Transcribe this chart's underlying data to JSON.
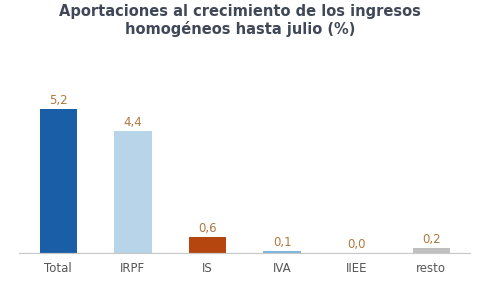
{
  "title": "Aportaciones al crecimiento de los ingresos\nhomogéneos hasta julio (%)",
  "categories": [
    "Total",
    "IRPF",
    "IS",
    "IVA",
    "IIEE",
    "resto"
  ],
  "values": [
    5.2,
    4.4,
    0.6,
    0.1,
    0.0,
    0.2
  ],
  "bar_colors": [
    "#1a5ea8",
    "#b8d4e8",
    "#b5460f",
    "#7ab8e0",
    "#7ab8e0",
    "#c0c0c0"
  ],
  "value_labels": [
    "5,2",
    "4,4",
    "0,6",
    "0,1",
    "0,0",
    "0,2"
  ],
  "title_fontsize": 10.5,
  "label_fontsize": 8.5,
  "value_fontsize": 8.5,
  "ylim": [
    0,
    6.2
  ],
  "background_color": "#ffffff",
  "label_color": "#b07840",
  "title_color": "#404858",
  "tick_color": "#555555"
}
